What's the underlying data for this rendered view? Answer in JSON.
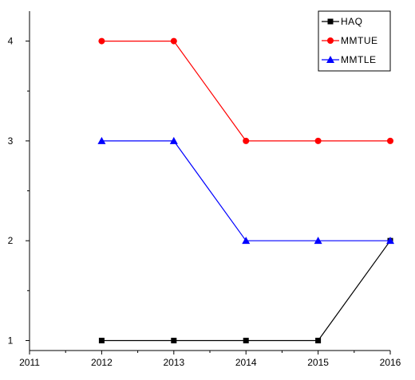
{
  "chart_data": {
    "type": "line",
    "x": [
      2012,
      2013,
      2014,
      2015,
      2016
    ],
    "xlim": [
      2011,
      2016
    ],
    "ylim": [
      0.9,
      4.3
    ],
    "xticks": [
      "2011",
      "2012",
      "2013",
      "2014",
      "2015",
      "2016"
    ],
    "yticks": [
      "1",
      "2",
      "3",
      "4"
    ],
    "legend_placement": "top-right",
    "grid": false,
    "series": [
      {
        "name": "HAQ",
        "values": [
          1,
          1,
          1,
          1,
          2
        ],
        "color": "#000000",
        "marker": "square"
      },
      {
        "name": "MMTUE",
        "values": [
          4,
          4,
          3,
          3,
          3
        ],
        "color": "#ff0000",
        "marker": "circle"
      },
      {
        "name": "MMTLE",
        "values": [
          3,
          3,
          2,
          2,
          2
        ],
        "color": "#0000ff",
        "marker": "triangle"
      }
    ]
  }
}
